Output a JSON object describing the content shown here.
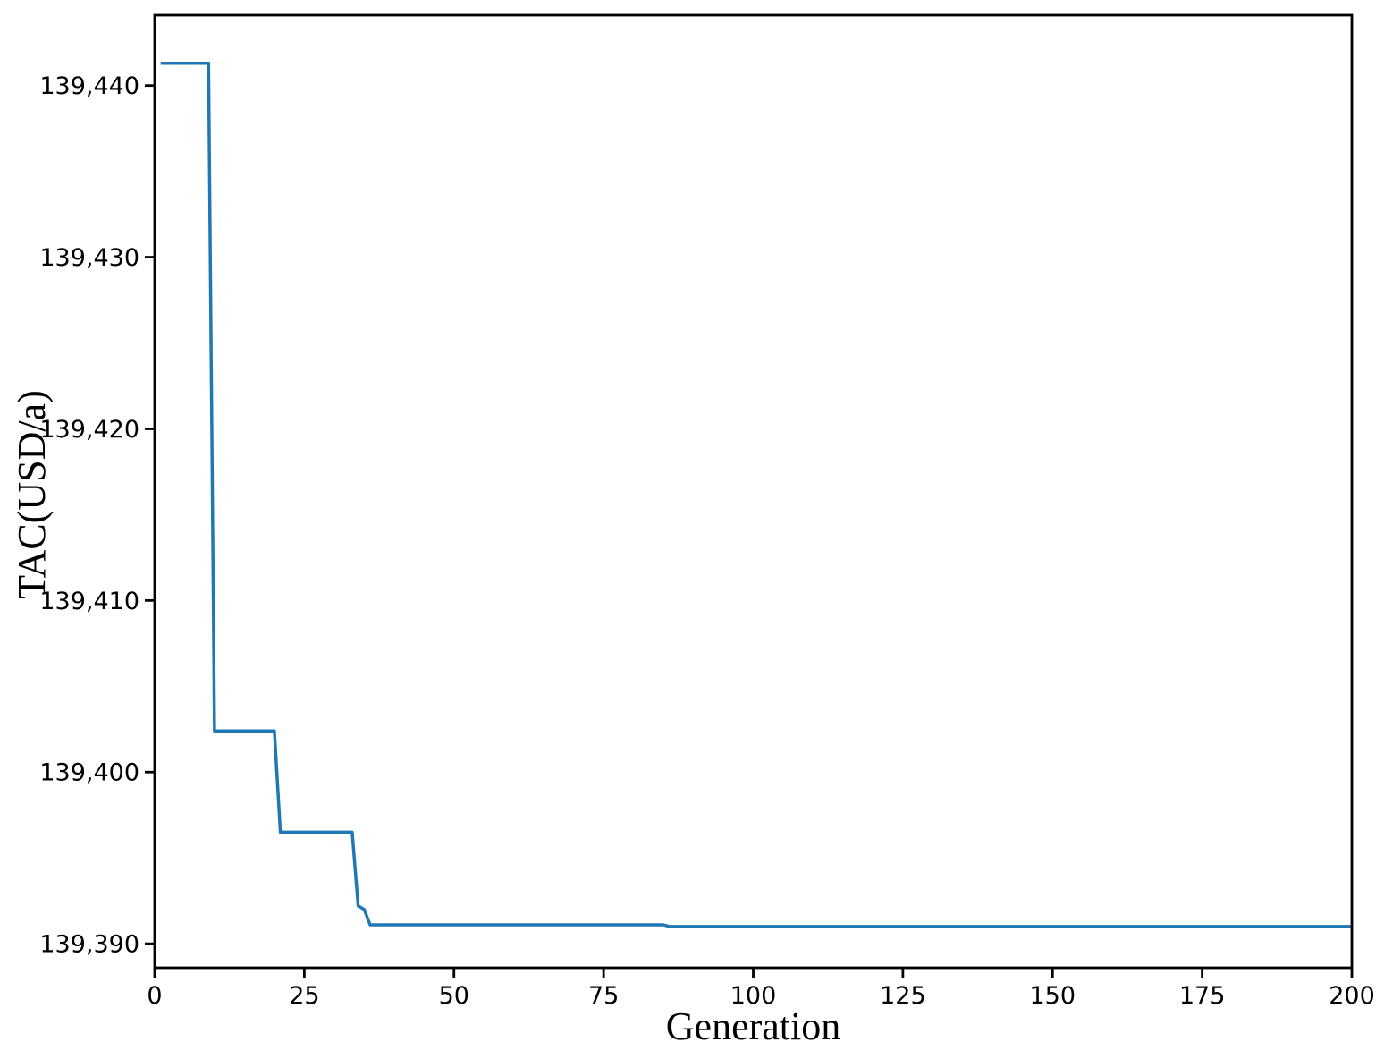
{
  "figure": {
    "background": "#ffffff",
    "frame_color": "#000000",
    "text_color": "#000000"
  },
  "chart_data": {
    "type": "line",
    "title": "",
    "xlabel": "Generation",
    "ylabel": "TAC(USD/a)",
    "grid": false,
    "legend_position": "none",
    "xlim": [
      0,
      200
    ],
    "ylim": [
      139388.6,
      139444.1
    ],
    "xticks": [
      0,
      25,
      50,
      75,
      100,
      125,
      150,
      175,
      200
    ],
    "xtick_labels": [
      "0",
      "25",
      "50",
      "75",
      "100",
      "125",
      "150",
      "175",
      "200"
    ],
    "yticks": [
      139390,
      139400,
      139410,
      139420,
      139430,
      139440
    ],
    "ytick_labels": [
      "139,390",
      "139,400",
      "139,410",
      "139,420",
      "139,430",
      "139,440"
    ],
    "series": [
      {
        "color": "#1f77b4",
        "line_width": 3.5,
        "points": [
          [
            1,
            139441.3
          ],
          [
            9,
            139441.3
          ],
          [
            10,
            139402.4
          ],
          [
            20,
            139402.4
          ],
          [
            21,
            139396.5
          ],
          [
            33,
            139396.5
          ],
          [
            34,
            139392.2
          ],
          [
            35,
            139392.0
          ],
          [
            36,
            139391.1
          ],
          [
            85,
            139391.1
          ],
          [
            86,
            139391.0
          ],
          [
            200,
            139391.0
          ]
        ]
      }
    ]
  }
}
